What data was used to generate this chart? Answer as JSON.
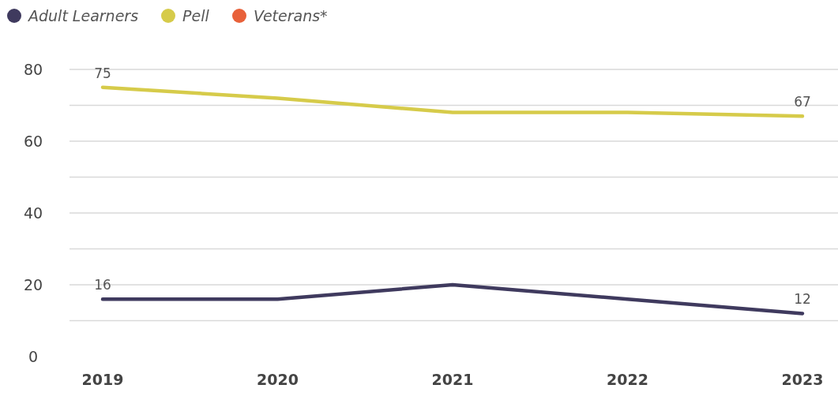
{
  "chart_data": {
    "type": "line",
    "categories": [
      "2019",
      "2020",
      "2021",
      "2022",
      "2023"
    ],
    "series": [
      {
        "name": "Adult Learners",
        "color": "#3f3a5e",
        "values": [
          16,
          16,
          20,
          16,
          12
        ],
        "value_labels": [
          "16",
          null,
          null,
          null,
          "12"
        ]
      },
      {
        "name": "Pell",
        "color": "#d6cb4a",
        "values": [
          75,
          72,
          68,
          68,
          67
        ],
        "value_labels": [
          "75",
          null,
          null,
          null,
          "67"
        ]
      },
      {
        "name": "Veterans*",
        "color": "#e8613a",
        "values": [
          null,
          null,
          null,
          null,
          null
        ]
      }
    ],
    "ylim": [
      0,
      80
    ],
    "yticks": [
      0,
      {
        "value": 10,
        "label": null
      },
      20,
      {
        "value": 30,
        "label": null
      },
      40,
      {
        "value": 50,
        "label": null
      },
      60,
      {
        "value": 70,
        "label": null
      },
      80
    ],
    "grid": "y",
    "legend": "top left",
    "marker": "none",
    "line_style": "solid"
  }
}
